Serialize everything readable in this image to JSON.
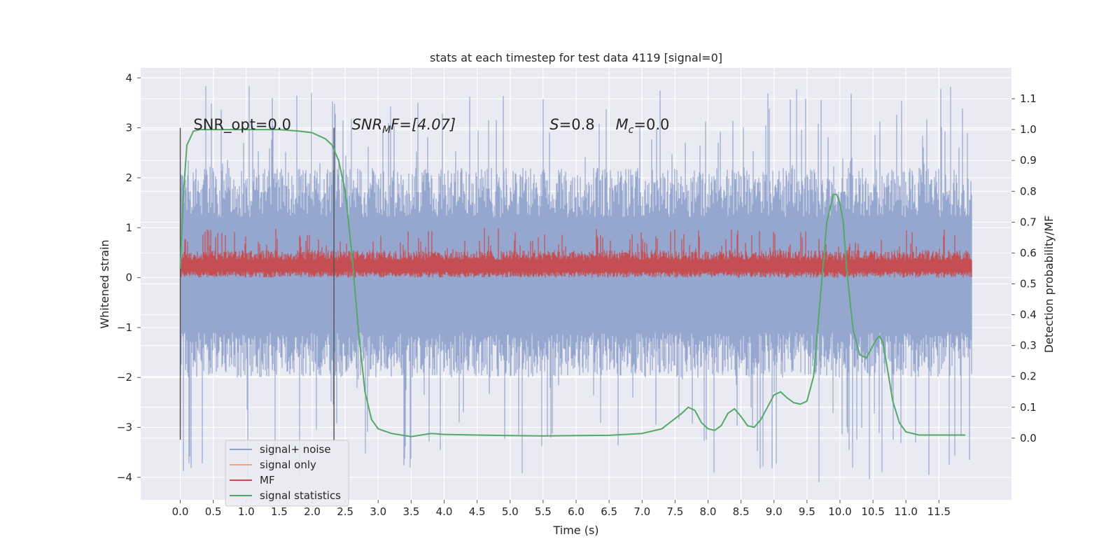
{
  "chart_data": {
    "type": "line",
    "title": "stats at each timestep for test data 4119 [signal=0]",
    "xlabel": "Time (s)",
    "ylabel": "Whitened strain",
    "y2label": "Detection probability/MF",
    "xlim": [
      -0.6,
      12.6
    ],
    "ylim": [
      -4.45,
      4.2
    ],
    "y2lim": [
      -0.2,
      1.2
    ],
    "x_ticks": [
      "0.0",
      "0.5",
      "1.0",
      "1.5",
      "2.0",
      "2.5",
      "3.0",
      "3.5",
      "4.0",
      "4.5",
      "5.0",
      "5.5",
      "6.0",
      "6.5",
      "7.0",
      "7.5",
      "8.0",
      "8.5",
      "9.0",
      "9.5",
      "10.0",
      "10.5",
      "11.0",
      "11.5"
    ],
    "y_ticks": [
      "4",
      "3",
      "2",
      "1",
      "0",
      "−1",
      "−2",
      "−3",
      "−4"
    ],
    "y2_ticks": [
      "1.1",
      "1.0",
      "0.9",
      "0.8",
      "0.7",
      "0.6",
      "0.5",
      "0.4",
      "0.3",
      "0.2",
      "0.1",
      "0.0"
    ],
    "grid": true,
    "legend_position": "lower-left",
    "series": [
      {
        "name": "signal+ noise",
        "color": "#8da0cb",
        "x_range": [
          0,
          12.0
        ],
        "band_typical": [
          -2.0,
          2.2
        ],
        "band_extreme": [
          -4.1,
          3.85
        ]
      },
      {
        "name": "signal only",
        "color": "#e8a98a",
        "values": []
      },
      {
        "name": "MF",
        "color": "#c44e52",
        "x_range": [
          0,
          12.0
        ],
        "band": [
          0.0,
          1.0
        ]
      },
      {
        "name": "signal statistics",
        "color": "#55a868",
        "x": [
          0.0,
          0.05,
          0.1,
          0.2,
          0.3,
          0.5,
          1.0,
          1.5,
          1.8,
          2.0,
          2.2,
          2.3,
          2.4,
          2.5,
          2.6,
          2.7,
          2.8,
          2.9,
          3.0,
          3.2,
          3.5,
          3.8,
          4.0,
          4.5,
          5.0,
          5.5,
          6.0,
          6.5,
          7.0,
          7.3,
          7.6,
          7.7,
          7.8,
          7.9,
          8.0,
          8.1,
          8.2,
          8.3,
          8.4,
          8.5,
          8.6,
          8.7,
          8.8,
          8.9,
          9.0,
          9.1,
          9.2,
          9.3,
          9.4,
          9.5,
          9.6,
          9.7,
          9.8,
          9.9,
          9.95,
          10.0,
          10.05,
          10.1,
          10.2,
          10.3,
          10.4,
          10.5,
          10.55,
          10.6,
          10.65,
          10.7,
          10.8,
          10.9,
          11.0,
          11.2,
          11.5,
          11.9
        ],
        "values": [
          0.55,
          0.8,
          0.95,
          0.995,
          1.0,
          1.0,
          1.0,
          1.0,
          0.995,
          0.99,
          0.97,
          0.95,
          0.9,
          0.8,
          0.6,
          0.35,
          0.15,
          0.06,
          0.03,
          0.015,
          0.005,
          0.015,
          0.012,
          0.01,
          0.008,
          0.007,
          0.008,
          0.009,
          0.015,
          0.03,
          0.08,
          0.1,
          0.09,
          0.05,
          0.03,
          0.025,
          0.04,
          0.08,
          0.095,
          0.07,
          0.04,
          0.035,
          0.06,
          0.1,
          0.14,
          0.15,
          0.13,
          0.115,
          0.11,
          0.12,
          0.2,
          0.45,
          0.7,
          0.79,
          0.79,
          0.76,
          0.7,
          0.55,
          0.35,
          0.27,
          0.26,
          0.3,
          0.32,
          0.33,
          0.31,
          0.25,
          0.12,
          0.05,
          0.02,
          0.01,
          0.01,
          0.01
        ]
      }
    ],
    "vlines": [
      {
        "x": 0.0,
        "ylim": [
          -3.25,
          3.0
        ]
      },
      {
        "x": 2.33,
        "ylim": [
          -3.25,
          3.0
        ]
      }
    ],
    "annotations": {
      "snr_opt": "SNR_opt=0.0",
      "snr_mf_main": "SNR",
      "snr_mf_sub": "M",
      "snr_mf_rest": "F=[4.07]",
      "s_main": "S",
      "s_rest": "=0.8",
      "mc_main": "M",
      "mc_sub": "c",
      "mc_rest": "=0.0"
    },
    "annotation_anchors": [
      0.2,
      2.6,
      5.6,
      6.6
    ]
  }
}
